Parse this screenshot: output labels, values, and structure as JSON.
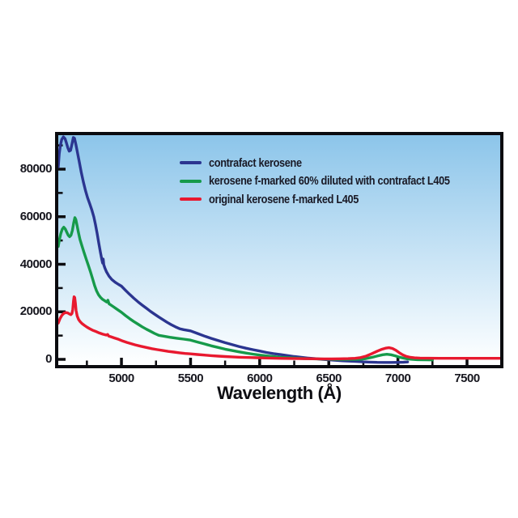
{
  "chart_data": {
    "type": "line",
    "title": "",
    "xlabel": "Wavelength (Å)",
    "ylabel": "",
    "xlim": [
      4543,
      7740
    ],
    "ylim": [
      -2383,
      94298
    ],
    "x_ticks": [
      5000,
      5500,
      6000,
      6500,
      7000,
      7500
    ],
    "x_minor_ticks": [
      4750,
      5250,
      5750,
      6250,
      6750,
      7250
    ],
    "y_ticks": [
      0,
      20000,
      40000,
      60000,
      80000
    ],
    "y_minor_ticks": [
      10000,
      30000,
      50000,
      70000,
      90000
    ],
    "grid": false,
    "legend_position": "inside-top-center",
    "background_gradient_top": "#8cc5ea",
    "background_gradient_bottom": "#f6fbfe",
    "axis_color": "#0b0b0f",
    "series": [
      {
        "name": "contrafact kerosene",
        "color": "#2b3590",
        "points": [
          [
            4543,
            81000
          ],
          [
            4550,
            86500
          ],
          [
            4558,
            90000
          ],
          [
            4568,
            92500
          ],
          [
            4580,
            93600
          ],
          [
            4592,
            92800
          ],
          [
            4602,
            91000
          ],
          [
            4612,
            89000
          ],
          [
            4622,
            87600
          ],
          [
            4632,
            87900
          ],
          [
            4642,
            90500
          ],
          [
            4652,
            93300
          ],
          [
            4660,
            93000
          ],
          [
            4670,
            90500
          ],
          [
            4682,
            87000
          ],
          [
            4695,
            83000
          ],
          [
            4710,
            78500
          ],
          [
            4725,
            74500
          ],
          [
            4740,
            71000
          ],
          [
            4755,
            68000
          ],
          [
            4770,
            65500
          ],
          [
            4785,
            63000
          ],
          [
            4800,
            60000
          ],
          [
            4812,
            56800
          ],
          [
            4824,
            53000
          ],
          [
            4836,
            49000
          ],
          [
            4848,
            45000
          ],
          [
            4858,
            42000
          ],
          [
            4864,
            40500
          ],
          [
            4868,
            42200
          ],
          [
            4872,
            39800
          ],
          [
            4880,
            38400
          ],
          [
            4892,
            36800
          ],
          [
            4910,
            35000
          ],
          [
            4930,
            33600
          ],
          [
            4955,
            32400
          ],
          [
            4980,
            31500
          ],
          [
            5000,
            30800
          ],
          [
            5030,
            29000
          ],
          [
            5060,
            27300
          ],
          [
            5090,
            25700
          ],
          [
            5120,
            24200
          ],
          [
            5150,
            22800
          ],
          [
            5180,
            21500
          ],
          [
            5210,
            20200
          ],
          [
            5240,
            19000
          ],
          [
            5270,
            17800
          ],
          [
            5300,
            16700
          ],
          [
            5330,
            15600
          ],
          [
            5360,
            14600
          ],
          [
            5390,
            13700
          ],
          [
            5420,
            12900
          ],
          [
            5450,
            12500
          ],
          [
            5500,
            12000
          ],
          [
            5550,
            10900
          ],
          [
            5600,
            9800
          ],
          [
            5650,
            8800
          ],
          [
            5700,
            7900
          ],
          [
            5750,
            7000
          ],
          [
            5800,
            6200
          ],
          [
            5850,
            5400
          ],
          [
            5900,
            4700
          ],
          [
            5950,
            4100
          ],
          [
            6000,
            3500
          ],
          [
            6050,
            2900
          ],
          [
            6100,
            2400
          ],
          [
            6150,
            2000
          ],
          [
            6200,
            1600
          ],
          [
            6250,
            1200
          ],
          [
            6300,
            850
          ],
          [
            6350,
            550
          ],
          [
            6400,
            300
          ],
          [
            6450,
            50
          ],
          [
            6500,
            -200
          ],
          [
            6550,
            -400
          ],
          [
            6600,
            -600
          ],
          [
            6650,
            -750
          ],
          [
            6700,
            -900
          ],
          [
            6750,
            -1050
          ],
          [
            6800,
            -1150
          ],
          [
            6850,
            -1250
          ],
          [
            6900,
            -1300
          ],
          [
            6950,
            -1300
          ],
          [
            7000,
            -1250
          ],
          [
            7040,
            -1200
          ],
          [
            7070,
            -1100
          ]
        ]
      },
      {
        "name": "kerosene f-marked 60% diluted with contrafact L405",
        "color": "#169a4a",
        "points": [
          [
            4543,
            47500
          ],
          [
            4552,
            50500
          ],
          [
            4562,
            53000
          ],
          [
            4572,
            54800
          ],
          [
            4583,
            55600
          ],
          [
            4594,
            54800
          ],
          [
            4605,
            53400
          ],
          [
            4615,
            52200
          ],
          [
            4625,
            51600
          ],
          [
            4635,
            52200
          ],
          [
            4645,
            54200
          ],
          [
            4655,
            57500
          ],
          [
            4663,
            59600
          ],
          [
            4670,
            58800
          ],
          [
            4678,
            56500
          ],
          [
            4688,
            53500
          ],
          [
            4700,
            50500
          ],
          [
            4714,
            47800
          ],
          [
            4728,
            45200
          ],
          [
            4744,
            42400
          ],
          [
            4760,
            39600
          ],
          [
            4776,
            36800
          ],
          [
            4792,
            33800
          ],
          [
            4806,
            31000
          ],
          [
            4820,
            28800
          ],
          [
            4834,
            27200
          ],
          [
            4848,
            26100
          ],
          [
            4862,
            25300
          ],
          [
            4878,
            24700
          ],
          [
            4894,
            24100
          ],
          [
            4902,
            24900
          ],
          [
            4910,
            23400
          ],
          [
            4925,
            22800
          ],
          [
            4945,
            22000
          ],
          [
            4970,
            21000
          ],
          [
            5000,
            19800
          ],
          [
            5030,
            18400
          ],
          [
            5060,
            17100
          ],
          [
            5090,
            15900
          ],
          [
            5120,
            14800
          ],
          [
            5150,
            13700
          ],
          [
            5180,
            12700
          ],
          [
            5210,
            11800
          ],
          [
            5240,
            10900
          ],
          [
            5270,
            10100
          ],
          [
            5300,
            9800
          ],
          [
            5350,
            9300
          ],
          [
            5400,
            8900
          ],
          [
            5450,
            8500
          ],
          [
            5500,
            8100
          ],
          [
            5550,
            7300
          ],
          [
            5600,
            6500
          ],
          [
            5650,
            5700
          ],
          [
            5700,
            5000
          ],
          [
            5750,
            4300
          ],
          [
            5800,
            3700
          ],
          [
            5850,
            3150
          ],
          [
            5900,
            2650
          ],
          [
            5950,
            2200
          ],
          [
            6000,
            1800
          ],
          [
            6050,
            1450
          ],
          [
            6100,
            1150
          ],
          [
            6150,
            900
          ],
          [
            6200,
            700
          ],
          [
            6260,
            500
          ],
          [
            6320,
            350
          ],
          [
            6380,
            230
          ],
          [
            6440,
            130
          ],
          [
            6500,
            60
          ],
          [
            6560,
            0
          ],
          [
            6620,
            -40
          ],
          [
            6680,
            -20
          ],
          [
            6730,
            80
          ],
          [
            6770,
            330
          ],
          [
            6810,
            800
          ],
          [
            6850,
            1400
          ],
          [
            6890,
            1950
          ],
          [
            6920,
            2150
          ],
          [
            6950,
            1950
          ],
          [
            6980,
            1500
          ],
          [
            7010,
            950
          ],
          [
            7040,
            500
          ],
          [
            7070,
            200
          ],
          [
            7100,
            20
          ],
          [
            7140,
            -120
          ],
          [
            7200,
            -200
          ],
          [
            7250,
            -250
          ]
        ]
      },
      {
        "name": "original kerosene f-marked L405",
        "color": "#e8192f",
        "points": [
          [
            4543,
            15300
          ],
          [
            4556,
            17200
          ],
          [
            4570,
            18600
          ],
          [
            4584,
            19400
          ],
          [
            4598,
            19700
          ],
          [
            4612,
            19500
          ],
          [
            4624,
            19100
          ],
          [
            4634,
            18800
          ],
          [
            4642,
            19300
          ],
          [
            4648,
            21000
          ],
          [
            4653,
            24500
          ],
          [
            4657,
            26300
          ],
          [
            4662,
            26000
          ],
          [
            4667,
            23500
          ],
          [
            4672,
            20500
          ],
          [
            4680,
            18200
          ],
          [
            4690,
            16800
          ],
          [
            4702,
            15800
          ],
          [
            4716,
            15000
          ],
          [
            4732,
            14300
          ],
          [
            4750,
            13600
          ],
          [
            4770,
            12900
          ],
          [
            4790,
            12300
          ],
          [
            4815,
            11700
          ],
          [
            4840,
            11100
          ],
          [
            4865,
            10600
          ],
          [
            4890,
            10200
          ],
          [
            4900,
            10500
          ],
          [
            4908,
            9800
          ],
          [
            4925,
            9500
          ],
          [
            4950,
            9000
          ],
          [
            4980,
            8400
          ],
          [
            5010,
            7700
          ],
          [
            5040,
            7100
          ],
          [
            5070,
            6600
          ],
          [
            5100,
            6100
          ],
          [
            5140,
            5500
          ],
          [
            5180,
            5000
          ],
          [
            5220,
            4500
          ],
          [
            5260,
            4100
          ],
          [
            5300,
            3700
          ],
          [
            5340,
            3350
          ],
          [
            5380,
            3050
          ],
          [
            5420,
            2750
          ],
          [
            5460,
            2500
          ],
          [
            5500,
            2300
          ],
          [
            5550,
            2050
          ],
          [
            5600,
            1800
          ],
          [
            5650,
            1550
          ],
          [
            5700,
            1350
          ],
          [
            5750,
            1200
          ],
          [
            5800,
            1050
          ],
          [
            5860,
            900
          ],
          [
            5920,
            780
          ],
          [
            5980,
            670
          ],
          [
            6040,
            570
          ],
          [
            6100,
            490
          ],
          [
            6160,
            420
          ],
          [
            6220,
            360
          ],
          [
            6280,
            310
          ],
          [
            6340,
            270
          ],
          [
            6400,
            240
          ],
          [
            6460,
            220
          ],
          [
            6520,
            210
          ],
          [
            6580,
            230
          ],
          [
            6640,
            300
          ],
          [
            6690,
            450
          ],
          [
            6730,
            750
          ],
          [
            6770,
            1350
          ],
          [
            6810,
            2350
          ],
          [
            6850,
            3450
          ],
          [
            6880,
            4150
          ],
          [
            6910,
            4700
          ],
          [
            6935,
            4900
          ],
          [
            6960,
            4600
          ],
          [
            6985,
            3800
          ],
          [
            7010,
            2800
          ],
          [
            7035,
            1900
          ],
          [
            7060,
            1250
          ],
          [
            7090,
            850
          ],
          [
            7120,
            650
          ],
          [
            7160,
            530
          ],
          [
            7220,
            470
          ],
          [
            7300,
            440
          ],
          [
            7450,
            430
          ],
          [
            7740,
            430
          ]
        ]
      }
    ]
  },
  "legend": {
    "items": [
      {
        "label": "contrafact kerosene"
      },
      {
        "label": "kerosene f-marked 60% diluted with contrafact L405"
      },
      {
        "label": "original kerosene f-marked L405"
      }
    ]
  }
}
